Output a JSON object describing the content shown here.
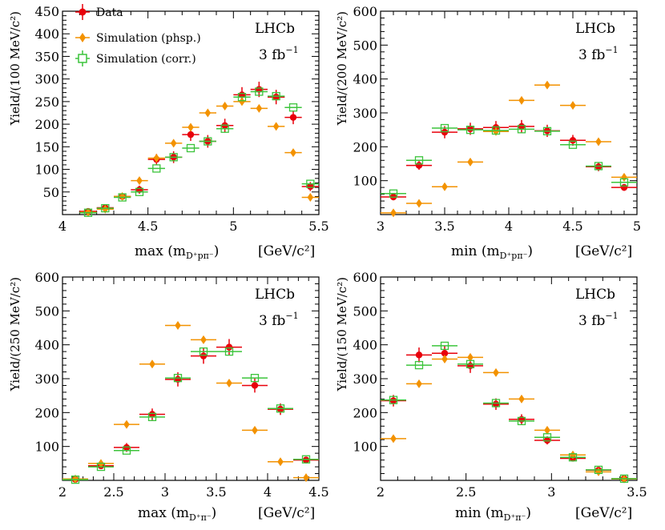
{
  "colors": {
    "data": "#e8000b",
    "phsp": "#f39200",
    "corr": "#3cc43c",
    "axis": "#000000"
  },
  "legend": {
    "data": "Data",
    "phsp": "Simulation (phsp.)",
    "corr": "Simulation (corr.)"
  },
  "chart_data": [
    {
      "type": "scatter",
      "id": "p1",
      "lhcb_label": "LHCb",
      "lumi_label": "3 fb",
      "lumi_exp": "−1",
      "ylabel": "Yield/(100 MeV/c²)",
      "xlabel_main": "max (m",
      "xlabel_sub": "D⁺pπ⁻",
      "xlabel_close": ")",
      "xlabel_unit": "[GeV/c²]",
      "xlim": [
        4,
        5.5
      ],
      "ylim": [
        0,
        450
      ],
      "xticks": [
        4,
        4.5,
        5,
        5.5
      ],
      "xtick_labels": [
        "4",
        "4.5",
        "5",
        "5.5"
      ],
      "yticks": [
        50,
        100,
        150,
        200,
        250,
        300,
        350,
        400,
        450
      ],
      "ytick_labels": [
        "50",
        "100",
        "150",
        "200",
        "250",
        "300",
        "350",
        "400",
        "450"
      ],
      "binwidth": 0.1,
      "series": [
        {
          "name": "Data",
          "key": "data",
          "x": [
            4.15,
            4.25,
            4.35,
            4.45,
            4.55,
            4.65,
            4.75,
            4.85,
            4.95,
            5.05,
            5.15,
            5.25,
            5.35,
            5.45
          ],
          "y": [
            7,
            15,
            40,
            55,
            122,
            127,
            177,
            162,
            197,
            265,
            277,
            260,
            215,
            62
          ],
          "err": [
            4,
            5,
            7,
            9,
            12,
            13,
            14,
            14,
            15,
            17,
            17,
            16,
            15,
            10
          ]
        },
        {
          "name": "Simulation (phsp.)",
          "key": "phsp",
          "x": [
            4.15,
            4.25,
            4.35,
            4.45,
            4.55,
            4.65,
            4.75,
            4.85,
            4.95,
            5.05,
            5.15,
            5.25,
            5.35,
            5.45
          ],
          "y": [
            5,
            12,
            40,
            75,
            125,
            158,
            193,
            225,
            240,
            250,
            235,
            195,
            137,
            38
          ],
          "err": [
            0,
            0,
            0,
            0,
            0,
            0,
            0,
            0,
            0,
            0,
            0,
            0,
            0,
            0
          ]
        },
        {
          "name": "Simulation (corr.)",
          "key": "corr",
          "x": [
            4.15,
            4.25,
            4.35,
            4.45,
            4.55,
            4.65,
            4.75,
            4.85,
            4.95,
            5.05,
            5.15,
            5.25,
            5.35,
            5.45
          ],
          "y": [
            4,
            14,
            38,
            50,
            102,
            127,
            147,
            162,
            190,
            260,
            272,
            262,
            237,
            68
          ],
          "err": [
            0,
            0,
            0,
            0,
            0,
            0,
            0,
            0,
            0,
            0,
            0,
            0,
            0,
            0
          ]
        }
      ]
    },
    {
      "type": "scatter",
      "id": "p2",
      "lhcb_label": "LHCb",
      "lumi_label": "3 fb",
      "lumi_exp": "−1",
      "ylabel": "Yield/(200 MeV/c²)",
      "xlabel_main": "min (m",
      "xlabel_sub": "D⁺pπ⁻",
      "xlabel_close": ")",
      "xlabel_unit": "[GeV/c²]",
      "xlim": [
        3,
        5
      ],
      "ylim": [
        0,
        600
      ],
      "xticks": [
        3,
        3.5,
        4,
        4.5,
        5
      ],
      "xtick_labels": [
        "3",
        "3.5",
        "4",
        "4.5",
        "5"
      ],
      "yticks": [
        100,
        200,
        300,
        400,
        500,
        600
      ],
      "ytick_labels": [
        "100",
        "200",
        "300",
        "400",
        "500",
        "600"
      ],
      "binwidth": 0.2,
      "series": [
        {
          "name": "Data",
          "key": "data",
          "x": [
            3.1,
            3.3,
            3.5,
            3.7,
            3.9,
            4.1,
            4.3,
            4.5,
            4.7,
            4.9
          ],
          "y": [
            52,
            145,
            243,
            253,
            257,
            260,
            247,
            219,
            141,
            80
          ],
          "err": [
            10,
            13,
            18,
            18,
            19,
            19,
            18,
            16,
            13,
            10
          ]
        },
        {
          "name": "Simulation (phsp.)",
          "key": "phsp",
          "x": [
            3.1,
            3.3,
            3.5,
            3.7,
            3.9,
            4.1,
            4.3,
            4.5,
            4.7,
            4.9
          ],
          "y": [
            5,
            33,
            82,
            155,
            245,
            337,
            382,
            322,
            215,
            110
          ],
          "err": [
            0,
            0,
            0,
            0,
            0,
            0,
            0,
            0,
            0,
            0
          ]
        },
        {
          "name": "Simulation (corr.)",
          "key": "corr",
          "x": [
            3.1,
            3.3,
            3.5,
            3.7,
            3.9,
            4.1,
            4.3,
            4.5,
            4.7,
            4.9
          ],
          "y": [
            62,
            160,
            255,
            250,
            248,
            252,
            246,
            206,
            143,
            95
          ],
          "err": [
            0,
            0,
            0,
            0,
            0,
            0,
            0,
            0,
            0,
            0
          ]
        }
      ]
    },
    {
      "type": "scatter",
      "id": "p3",
      "lhcb_label": "LHCb",
      "lumi_label": "3 fb",
      "lumi_exp": "−1",
      "ylabel": "Yield/(250 MeV/c²)",
      "xlabel_main": "max (m",
      "xlabel_sub": "D⁺π⁻",
      "xlabel_close": ")",
      "xlabel_unit": "[GeV/c²]",
      "xlim": [
        2,
        4.5
      ],
      "ylim": [
        0,
        600
      ],
      "xticks": [
        2,
        2.5,
        3,
        3.5,
        4,
        4.5
      ],
      "xtick_labels": [
        "2",
        "2.5",
        "3",
        "3.5",
        "4",
        "4.5"
      ],
      "yticks": [
        100,
        200,
        300,
        400,
        500,
        600
      ],
      "ytick_labels": [
        "100",
        "200",
        "300",
        "400",
        "500",
        "600"
      ],
      "binwidth": 0.25,
      "series": [
        {
          "name": "Data",
          "key": "data",
          "x": [
            2.125,
            2.375,
            2.625,
            2.875,
            3.125,
            3.375,
            3.625,
            3.875,
            4.125,
            4.375
          ],
          "y": [
            3,
            43,
            97,
            195,
            298,
            367,
            393,
            280,
            210,
            60
          ],
          "err": [
            3,
            9,
            13,
            17,
            21,
            23,
            24,
            21,
            17,
            10
          ]
        },
        {
          "name": "Simulation (phsp.)",
          "key": "phsp",
          "x": [
            2.125,
            2.375,
            2.625,
            2.875,
            3.125,
            3.375,
            3.625,
            3.875,
            4.125,
            4.375
          ],
          "y": [
            4,
            50,
            165,
            343,
            457,
            415,
            287,
            148,
            55,
            8
          ],
          "err": [
            0,
            0,
            0,
            0,
            0,
            0,
            0,
            0,
            0,
            0
          ]
        },
        {
          "name": "Simulation (corr.)",
          "key": "corr",
          "x": [
            2.125,
            2.375,
            2.625,
            2.875,
            3.125,
            3.375,
            3.625,
            3.875,
            4.125,
            4.375
          ],
          "y": [
            2,
            40,
            88,
            187,
            302,
            380,
            380,
            302,
            212,
            62
          ],
          "err": [
            0,
            0,
            0,
            0,
            0,
            0,
            0,
            0,
            0,
            0
          ]
        }
      ]
    },
    {
      "type": "scatter",
      "id": "p4",
      "lhcb_label": "LHCb",
      "lumi_label": "3 fb",
      "lumi_exp": "−1",
      "ylabel": "Yield/(150 MeV/c²)",
      "xlabel_main": "min (m",
      "xlabel_sub": "D⁺π⁻",
      "xlabel_close": ")",
      "xlabel_unit": "[GeV/c²]",
      "xlim": [
        2,
        3.5
      ],
      "ylim": [
        0,
        600
      ],
      "xticks": [
        2,
        2.5,
        3,
        3.5
      ],
      "xtick_labels": [
        "2",
        "2.5",
        "3",
        "3.5"
      ],
      "yticks": [
        100,
        200,
        300,
        400,
        500,
        600
      ],
      "ytick_labels": [
        "100",
        "200",
        "300",
        "400",
        "500",
        "600"
      ],
      "binwidth": 0.15,
      "series": [
        {
          "name": "Data",
          "key": "data",
          "x": [
            2.075,
            2.225,
            2.375,
            2.525,
            2.675,
            2.825,
            2.975,
            3.125,
            3.275,
            3.425
          ],
          "y": [
            235,
            370,
            375,
            338,
            225,
            180,
            118,
            65,
            30,
            5
          ],
          "err": [
            17,
            22,
            22,
            21,
            17,
            15,
            12,
            9,
            6,
            3
          ]
        },
        {
          "name": "Simulation (phsp.)",
          "key": "phsp",
          "x": [
            2.075,
            2.225,
            2.375,
            2.525,
            2.675,
            2.825,
            2.975,
            3.125,
            3.275,
            3.425
          ],
          "y": [
            123,
            285,
            358,
            363,
            318,
            240,
            148,
            75,
            25,
            4
          ],
          "err": [
            0,
            0,
            0,
            0,
            0,
            0,
            0,
            0,
            0,
            0
          ]
        },
        {
          "name": "Simulation (corr.)",
          "key": "corr",
          "x": [
            2.075,
            2.225,
            2.375,
            2.525,
            2.675,
            2.825,
            2.975,
            3.125,
            3.275,
            3.425
          ],
          "y": [
            237,
            340,
            397,
            343,
            228,
            175,
            127,
            68,
            31,
            5
          ],
          "err": [
            0,
            0,
            0,
            0,
            0,
            0,
            0,
            0,
            0,
            0
          ]
        }
      ]
    }
  ]
}
